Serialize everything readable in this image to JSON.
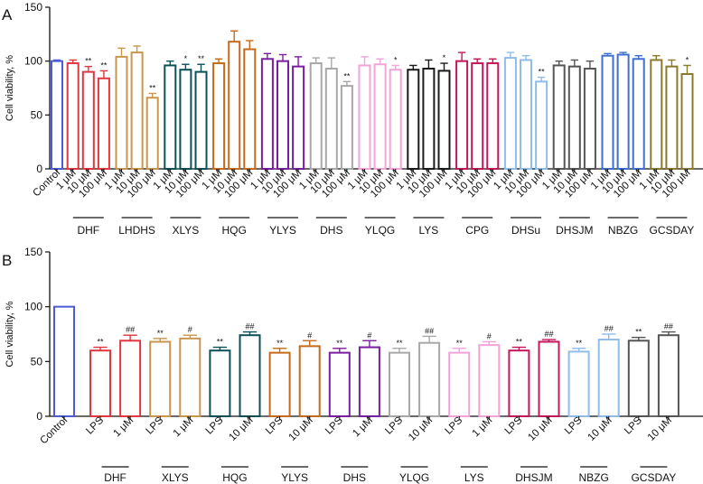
{
  "chart_data": [
    {
      "type": "bar",
      "panel_label": "A",
      "ylabel": "Cell viability, %",
      "xlabel": "",
      "ylim": [
        0,
        150
      ],
      "yticks": [
        "0",
        "50",
        "100",
        "150"
      ],
      "grid": false,
      "control": {
        "label": "Control",
        "value": 100,
        "error": 1,
        "color": "#4f5bd5",
        "sig": ""
      },
      "groups": [
        {
          "name": "DHF",
          "color": "#e0363f",
          "labels": [
            "1 μM",
            "10 μM",
            "100 μM"
          ],
          "values": [
            98,
            90,
            84
          ],
          "errors": [
            3,
            5,
            7
          ],
          "sig": [
            "",
            "**",
            "**"
          ]
        },
        {
          "name": "LHDHS",
          "color": "#c9964d",
          "labels": [
            "1 μM",
            "10 μM",
            "100 μM"
          ],
          "values": [
            104,
            108,
            66
          ],
          "errors": [
            8,
            6,
            4
          ],
          "sig": [
            "",
            "",
            "**"
          ]
        },
        {
          "name": "XLYS",
          "color": "#0d5158",
          "labels": [
            "1 μM",
            "10 μM",
            "100 μM"
          ],
          "values": [
            96,
            92,
            90
          ],
          "errors": [
            4,
            5,
            7
          ],
          "sig": [
            "",
            "*",
            "**"
          ]
        },
        {
          "name": "HQG",
          "color": "#c66a1b",
          "labels": [
            "1 μM",
            "10 μM",
            "100 μM"
          ],
          "values": [
            98,
            118,
            111
          ],
          "errors": [
            4,
            10,
            8
          ],
          "sig": [
            "",
            "",
            ""
          ]
        },
        {
          "name": "YLYS",
          "color": "#7a1ea1",
          "labels": [
            "1 μM",
            "10 μM",
            "100 μM"
          ],
          "values": [
            102,
            100,
            95
          ],
          "errors": [
            5,
            6,
            9
          ],
          "sig": [
            "",
            "",
            ""
          ]
        },
        {
          "name": "DHS",
          "color": "#a8a8a8",
          "labels": [
            "1 μM",
            "10 μM",
            "100 μM"
          ],
          "values": [
            98,
            93,
            77
          ],
          "errors": [
            5,
            10,
            4
          ],
          "sig": [
            "",
            "",
            "**"
          ]
        },
        {
          "name": "YLQG",
          "color": "#f2a3da",
          "labels": [
            "1 μM",
            "10 μM",
            "100 μM"
          ],
          "values": [
            96,
            97,
            92
          ],
          "errors": [
            8,
            5,
            4
          ],
          "sig": [
            "",
            "",
            "*"
          ]
        },
        {
          "name": "LYS",
          "color": "#1a1a1a",
          "labels": [
            "1 μM",
            "10 μM",
            "100 μM"
          ],
          "values": [
            92,
            93,
            91
          ],
          "errors": [
            4,
            8,
            7
          ],
          "sig": [
            "",
            "",
            "*"
          ]
        },
        {
          "name": "CPG",
          "color": "#c2185b",
          "labels": [
            "1 μM",
            "10 μM",
            "100 μM"
          ],
          "values": [
            100,
            98,
            98
          ],
          "errors": [
            8,
            4,
            4
          ],
          "sig": [
            "",
            "",
            ""
          ]
        },
        {
          "name": "DHSu",
          "color": "#8fbde8",
          "labels": [
            "1 μM",
            "10 μM",
            "100 μM"
          ],
          "values": [
            103,
            101,
            81
          ],
          "errors": [
            5,
            4,
            4
          ],
          "sig": [
            "",
            "",
            "**"
          ]
        },
        {
          "name": "DHSJM",
          "color": "#555555",
          "labels": [
            "1 μM",
            "10 μM",
            "100 μM"
          ],
          "values": [
            96,
            95,
            93
          ],
          "errors": [
            4,
            6,
            7
          ],
          "sig": [
            "",
            "",
            ""
          ]
        },
        {
          "name": "NBZG",
          "color": "#3f6fd1",
          "labels": [
            "1 μM",
            "10 μM",
            "100 μM"
          ],
          "values": [
            105,
            106,
            102
          ],
          "errors": [
            2,
            2,
            3
          ],
          "sig": [
            "",
            "",
            ""
          ]
        },
        {
          "name": "GCSDAY",
          "color": "#8c7a2c",
          "labels": [
            "1 μM",
            "10 μM",
            "100 μM"
          ],
          "values": [
            101,
            95,
            88
          ],
          "errors": [
            4,
            6,
            8
          ],
          "sig": [
            "",
            "",
            "*"
          ]
        }
      ]
    },
    {
      "type": "bar",
      "panel_label": "B",
      "ylabel": "Cell viability, %",
      "xlabel": "",
      "ylim": [
        0,
        150
      ],
      "yticks": [
        "0",
        "50",
        "100",
        "150"
      ],
      "grid": false,
      "control": {
        "label": "Control",
        "value": 100,
        "error": 0,
        "color": "#4f5bd5",
        "sig": ""
      },
      "groups": [
        {
          "name": "DHF",
          "color": "#e0363f",
          "labels": [
            "LPS",
            "1 μM"
          ],
          "values": [
            60,
            69
          ],
          "errors": [
            3,
            5
          ],
          "sig": [
            "**",
            "##"
          ]
        },
        {
          "name": "XLYS",
          "color": "#c9964d",
          "labels": [
            "LPS",
            "1 μM"
          ],
          "values": [
            68,
            71
          ],
          "errors": [
            3,
            3
          ],
          "sig": [
            "**",
            "#"
          ]
        },
        {
          "name": "HQG",
          "color": "#0d5158",
          "labels": [
            "LPS",
            "10 μM"
          ],
          "values": [
            60,
            74
          ],
          "errors": [
            3,
            3
          ],
          "sig": [
            "**",
            "##"
          ]
        },
        {
          "name": "YLYS",
          "color": "#c66a1b",
          "labels": [
            "LPS",
            "10 μM"
          ],
          "values": [
            58,
            64
          ],
          "errors": [
            4,
            5
          ],
          "sig": [
            "**",
            "#"
          ]
        },
        {
          "name": "DHS",
          "color": "#7a1ea1",
          "labels": [
            "LPS",
            "1 μM"
          ],
          "values": [
            58,
            63
          ],
          "errors": [
            4,
            6
          ],
          "sig": [
            "**",
            "#"
          ]
        },
        {
          "name": "YLQG",
          "color": "#a8a8a8",
          "labels": [
            "LPS",
            "10 μM"
          ],
          "values": [
            58,
            67
          ],
          "errors": [
            4,
            6
          ],
          "sig": [
            "**",
            "##"
          ]
        },
        {
          "name": "LYS",
          "color": "#f2a3da",
          "labels": [
            "LPS",
            "1 μM"
          ],
          "values": [
            58,
            65
          ],
          "errors": [
            4,
            3
          ],
          "sig": [
            "**",
            "#"
          ]
        },
        {
          "name": "DHSJM",
          "color": "#c2185b",
          "labels": [
            "LPS",
            "10 μM"
          ],
          "values": [
            60,
            68
          ],
          "errors": [
            3,
            2
          ],
          "sig": [
            "**",
            "##"
          ]
        },
        {
          "name": "NBZG",
          "color": "#8fbde8",
          "labels": [
            "LPS",
            "10 μM"
          ],
          "values": [
            59,
            70
          ],
          "errors": [
            3,
            5
          ],
          "sig": [
            "**",
            "##"
          ]
        },
        {
          "name": "GCSDAY",
          "color": "#555555",
          "labels": [
            "LPS",
            "10 μM"
          ],
          "values": [
            69,
            74
          ],
          "errors": [
            3,
            3
          ],
          "sig": [
            "**",
            "##"
          ]
        }
      ]
    }
  ]
}
